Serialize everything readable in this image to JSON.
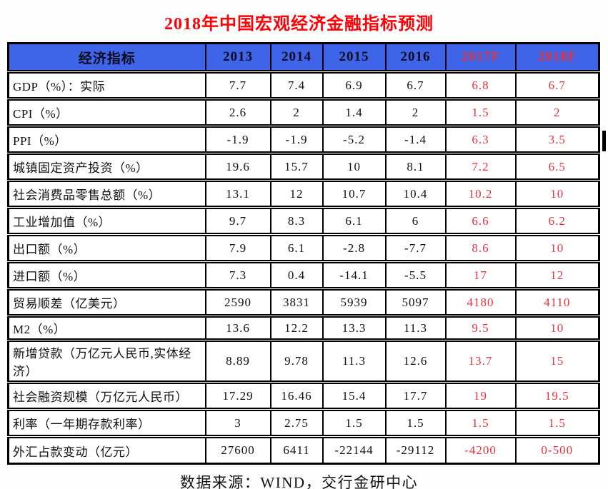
{
  "title": "2018年中国宏观经济金融指标预测",
  "source_note": "数据来源：WIND，交行金研中心",
  "colors": {
    "title_red": "#fb0207",
    "forecast_red": "#e43340",
    "header_bg": "#3e64e8",
    "border_black": "#000000"
  },
  "table": {
    "columns": [
      "经济指标",
      "2013",
      "2014",
      "2015",
      "2016",
      "2017F",
      "2018F"
    ],
    "forecast_columns": [
      "2017F",
      "2018F"
    ],
    "rows": [
      {
        "indicator": "GDP（%）：实际",
        "values": [
          "7.7",
          "7.4",
          "6.9",
          "6.7",
          "6.8",
          "6.7"
        ]
      },
      {
        "indicator": "CPI（%）",
        "values": [
          "2.6",
          "2",
          "1.4",
          "2",
          "1.5",
          "2"
        ]
      },
      {
        "indicator": "PPI（%）",
        "values": [
          "-1.9",
          "-1.9",
          "-5.2",
          "-1.4",
          "6.3",
          "3.5"
        ]
      },
      {
        "indicator": "城镇固定资产投资（%）",
        "values": [
          "19.6",
          "15.7",
          "10",
          "8.1",
          "7.2",
          "6.5"
        ]
      },
      {
        "indicator": "社会消费品零售总额（%）",
        "values": [
          "13.1",
          "12",
          "10.7",
          "10.4",
          "10.2",
          "10"
        ]
      },
      {
        "indicator": "工业增加值（%）",
        "values": [
          "9.7",
          "8.3",
          "6.1",
          "6",
          "6.6",
          "6.2"
        ]
      },
      {
        "indicator": "出口额（%）",
        "values": [
          "7.9",
          "6.1",
          "-2.8",
          "-7.7",
          "8.6",
          "10"
        ]
      },
      {
        "indicator": "进口额（%）",
        "values": [
          "7.3",
          "0.4",
          "-14.1",
          "-5.5",
          "17",
          "12"
        ]
      },
      {
        "indicator": "贸易顺差（亿美元）",
        "values": [
          "2590",
          "3831",
          "5939",
          "5097",
          "4180",
          "4110"
        ]
      },
      {
        "indicator": "M2（%）",
        "values": [
          "13.6",
          "12.2",
          "13.3",
          "11.3",
          "9.5",
          "10"
        ]
      },
      {
        "indicator": "新增贷款（万亿元人民币,实体经济）",
        "values": [
          "8.89",
          "9.78",
          "11.3",
          "12.6",
          "13.7",
          "15"
        ]
      },
      {
        "indicator": "社会融资规模（万亿元人民币）",
        "values": [
          "17.29",
          "16.46",
          "15.4",
          "17.7",
          "19",
          "19.5"
        ]
      },
      {
        "indicator": "利率（一年期存款利率）",
        "values": [
          "3",
          "2.75",
          "1.5",
          "1.5",
          "1.5",
          "1.5"
        ]
      },
      {
        "indicator": "外汇占款变动（亿元）",
        "values": [
          "27600",
          "6411",
          "-22144",
          "-29112",
          "-4200",
          "0-500"
        ]
      }
    ]
  }
}
